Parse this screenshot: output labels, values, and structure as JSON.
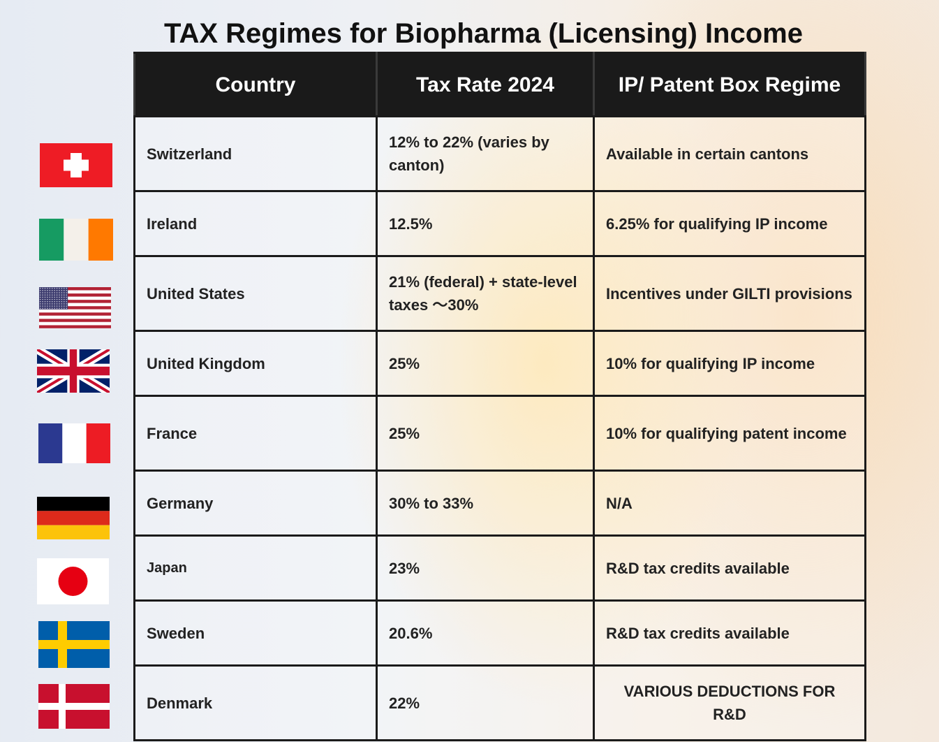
{
  "title": "TAX Regimes for Biopharma (Licensing) Income",
  "table": {
    "headers": [
      "Country",
      "Tax Rate 2024",
      "IP/ Patent Box Regime"
    ],
    "rows": [
      [
        "Switzerland",
        "12% to 22% (varies by canton)",
        "Available in certain cantons"
      ],
      [
        "Ireland",
        "12.5%",
        "6.25% for qualifying IP income"
      ],
      [
        "United States",
        "21% (federal) + state-level taxes 〜30%",
        "Incentives under GILTI provisions"
      ],
      [
        "United Kingdom",
        "25%",
        "10% for qualifying IP income"
      ],
      [
        "France",
        "25%",
        "10% for qualifying patent income"
      ],
      [
        "Germany",
        "30% to 33%",
        "N/A"
      ],
      [
        "Japan",
        "23%",
        "R&D tax credits available"
      ],
      [
        "Sweden",
        "20.6%",
        "R&D tax credits available"
      ],
      [
        "Denmark",
        "22%",
        "VARIOUS DEDUCTIONS FOR R&D"
      ]
    ]
  }
}
